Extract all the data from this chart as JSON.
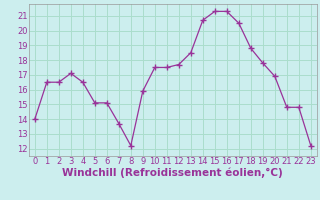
{
  "x": [
    0,
    1,
    2,
    3,
    4,
    5,
    6,
    7,
    8,
    9,
    10,
    11,
    12,
    13,
    14,
    15,
    16,
    17,
    18,
    19,
    20,
    21,
    22,
    23
  ],
  "y": [
    14,
    16.5,
    16.5,
    17.1,
    16.5,
    15.1,
    15.1,
    13.7,
    12.2,
    15.9,
    17.5,
    17.5,
    17.7,
    18.5,
    20.7,
    21.3,
    21.3,
    20.5,
    18.8,
    17.8,
    16.9,
    14.8,
    14.8,
    12.2
  ],
  "line_color": "#993399",
  "marker": "+",
  "marker_size": 4,
  "bg_color": "#cceeee",
  "grid_color": "#aaddcc",
  "axis_color": "#666666",
  "xlabel": "Windchill (Refroidissement éolien,°C)",
  "xlim": [
    -0.5,
    23.5
  ],
  "ylim": [
    11.5,
    21.8
  ],
  "xticks": [
    0,
    1,
    2,
    3,
    4,
    5,
    6,
    7,
    8,
    9,
    10,
    11,
    12,
    13,
    14,
    15,
    16,
    17,
    18,
    19,
    20,
    21,
    22,
    23
  ],
  "yticks": [
    12,
    13,
    14,
    15,
    16,
    17,
    18,
    19,
    20,
    21
  ],
  "tick_fontsize": 6.0,
  "xlabel_fontsize": 7.5,
  "label_color": "#993399"
}
